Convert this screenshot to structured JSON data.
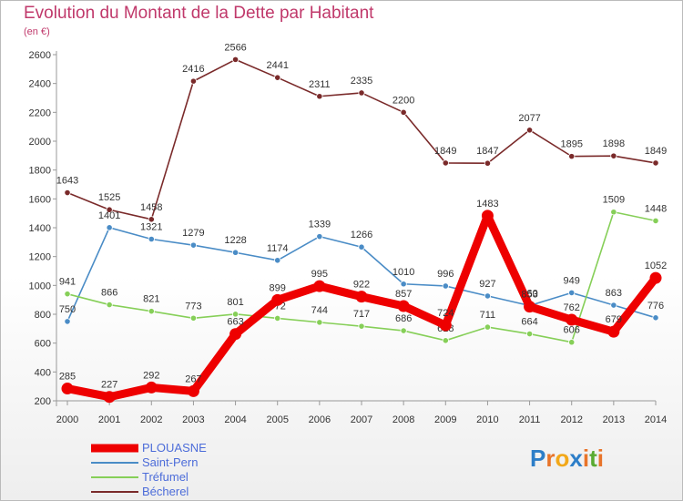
{
  "title": "Evolution du Montant de la Dette par Habitant",
  "subtitle": "(en €)",
  "logo": {
    "text": "Proxiti",
    "letters": [
      "P",
      "r",
      "o",
      "x",
      "i",
      "t",
      "i"
    ],
    "colors": [
      "#2d7ec8",
      "#e8742a",
      "#f2a819",
      "#2d7ec8",
      "#e8742a",
      "#5aab32",
      "#e8742a"
    ]
  },
  "chart_data": {
    "type": "line",
    "title": "Evolution du Montant de la Dette par Habitant",
    "subtitle": "(en €)",
    "x": [
      "2000",
      "2001",
      "2002",
      "2003",
      "2004",
      "2005",
      "2006",
      "2007",
      "2008",
      "2009",
      "2010",
      "2011",
      "2012",
      "2013",
      "2014"
    ],
    "ylim": [
      200,
      2600
    ],
    "yticks": [
      200,
      400,
      600,
      800,
      1000,
      1200,
      1400,
      1600,
      1800,
      2000,
      2200,
      2400,
      2600
    ],
    "grid": false,
    "legend_position": "bottom-left",
    "series": [
      {
        "name": "Bécherel",
        "color": "#7a2a2a",
        "values": [
          1643,
          1525,
          1458,
          2416,
          2566,
          2441,
          2311,
          2335,
          2200,
          1849,
          1847,
          2077,
          1895,
          1898,
          1849
        ],
        "labels": [
          "1643",
          "1525",
          "1458",
          "2416",
          "2566",
          "2441",
          "2311",
          "2335",
          "2200",
          "1849",
          "1847",
          "2077",
          "1895",
          "1898",
          "1849"
        ]
      },
      {
        "name": "Saint-Pern",
        "color": "#4a8cc6",
        "values": [
          750,
          1401,
          1321,
          1279,
          1228,
          1174,
          1339,
          1266,
          1010,
          996,
          927,
          860,
          949,
          863,
          776
        ],
        "labels": [
          "750",
          "1401",
          "1321",
          "1279",
          "1228",
          "1174",
          "1339",
          "1266",
          "1010",
          "996",
          "927",
          "860",
          "949",
          "863",
          "776"
        ]
      },
      {
        "name": "Tréfumel",
        "color": "#86cf58",
        "values": [
          941,
          866,
          821,
          773,
          801,
          772,
          744,
          717,
          686,
          618,
          711,
          664,
          606,
          1509,
          1448
        ],
        "labels": [
          "941",
          "866",
          "821",
          "773",
          "801",
          "772",
          "744",
          "717",
          "686",
          "618",
          "711",
          "664",
          "606",
          "1509",
          "1448"
        ]
      },
      {
        "name": "PLOUASNE",
        "color": "#ee0000",
        "values": [
          285,
          227,
          292,
          267,
          663,
          899,
          995,
          922,
          857,
          724,
          1483,
          853,
          762,
          679,
          1052
        ],
        "labels": [
          "285",
          "227",
          "292",
          "267",
          "663",
          "899",
          "995",
          "922",
          "857",
          "724",
          "1483",
          "853",
          "762",
          "679",
          "1052"
        ]
      }
    ]
  },
  "legend": [
    {
      "name": "PLOUASNE",
      "color": "#ee0000",
      "text_color": "#4c6cd9",
      "thickness": 9
    },
    {
      "name": "Saint-Pern",
      "color": "#4a8cc6",
      "text_color": "#4c6cd9",
      "thickness": 2
    },
    {
      "name": "Tréfumel",
      "color": "#86cf58",
      "text_color": "#4c6cd9",
      "thickness": 2
    },
    {
      "name": "Bécherel",
      "color": "#7a2a2a",
      "text_color": "#4c6cd9",
      "thickness": 2
    }
  ]
}
